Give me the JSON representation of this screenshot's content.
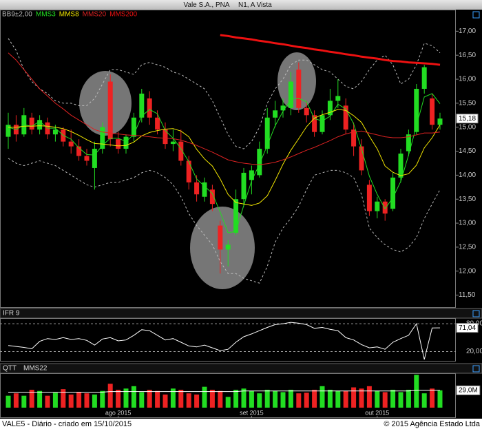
{
  "header": {
    "title": "Vale S.A., PNA",
    "market": "N1, A Vista"
  },
  "chart_data": [
    {
      "type": "candlestick",
      "categories": [
        null,
        null,
        null,
        null,
        null,
        null,
        null,
        null,
        null,
        null,
        null,
        null,
        null,
        null,
        "ago 2015",
        null,
        null,
        null,
        null,
        null,
        null,
        null,
        null,
        null,
        null,
        null,
        null,
        null,
        null,
        null,
        null,
        "set 2015",
        null,
        null,
        null,
        null,
        null,
        null,
        null,
        null,
        null,
        null,
        null,
        null,
        null,
        null,
        null,
        "out 2015",
        null,
        null,
        null,
        null,
        null,
        null,
        null,
        null
      ],
      "open": [
        14.8,
        15.05,
        14.85,
        15.2,
        14.95,
        15.1,
        14.85,
        14.95,
        14.7,
        14.6,
        14.4,
        14.15,
        14.55,
        15.95,
        14.75,
        14.55,
        14.8,
        15.2,
        15.6,
        15.2,
        14.95,
        14.65,
        14.7,
        14.3,
        13.85,
        13.55,
        13.7,
        12.95,
        12.45,
        12.8,
        13.5,
        13.9,
        14.0,
        14.55,
        15.2,
        15.35,
        15.4,
        16.2,
        15.4,
        15.25,
        14.9,
        15.25,
        15.55,
        15.45,
        14.95,
        14.6,
        13.8,
        13.25,
        13.45,
        13.3,
        13.95,
        14.5,
        14.9,
        15.8,
        15.6,
        15.05
      ],
      "high": [
        15.3,
        15.25,
        15.4,
        15.3,
        15.25,
        15.2,
        15.05,
        15.0,
        14.95,
        14.75,
        14.55,
        14.7,
        15.1,
        16.1,
        14.9,
        14.85,
        15.3,
        15.8,
        15.75,
        15.35,
        15.1,
        14.95,
        14.95,
        14.4,
        14.0,
        13.95,
        13.8,
        13.05,
        12.65,
        13.7,
        14.15,
        14.2,
        14.7,
        15.4,
        15.55,
        15.6,
        16.15,
        16.35,
        15.55,
        15.35,
        15.35,
        15.8,
        16.0,
        15.6,
        15.1,
        14.75,
        13.9,
        13.55,
        13.5,
        14.05,
        14.55,
        14.95,
        15.9,
        16.3,
        15.7,
        15.3
      ],
      "low": [
        14.55,
        14.7,
        14.8,
        14.85,
        14.85,
        14.75,
        14.7,
        14.6,
        14.45,
        14.3,
        14.2,
        13.7,
        14.45,
        14.6,
        14.45,
        14.45,
        14.7,
        15.1,
        15.05,
        14.85,
        14.55,
        14.5,
        14.2,
        13.7,
        13.45,
        13.45,
        13.25,
        11.95,
        12.1,
        12.75,
        13.35,
        13.6,
        13.95,
        14.45,
        15.0,
        15.2,
        15.25,
        15.3,
        15.1,
        14.8,
        14.85,
        15.15,
        15.4,
        14.85,
        14.4,
        14.0,
        13.15,
        13.1,
        13.05,
        13.25,
        13.85,
        14.4,
        14.85,
        15.7,
        14.95,
        14.95
      ],
      "close": [
        15.05,
        14.85,
        15.25,
        14.95,
        15.15,
        14.85,
        14.95,
        14.7,
        14.6,
        14.4,
        14.3,
        14.55,
        15.0,
        14.75,
        14.55,
        14.8,
        15.2,
        15.7,
        15.2,
        14.95,
        14.65,
        14.7,
        14.3,
        13.85,
        13.6,
        13.85,
        13.4,
        12.45,
        12.55,
        13.5,
        14.05,
        14.1,
        14.55,
        15.2,
        15.35,
        15.45,
        15.95,
        15.4,
        15.25,
        14.9,
        15.25,
        15.55,
        15.65,
        14.95,
        14.6,
        14.1,
        13.25,
        13.45,
        13.2,
        13.95,
        14.45,
        14.85,
        15.8,
        16.25,
        15.05,
        15.18
      ],
      "up_color": "#22dd22",
      "down_color": "#ee2222",
      "bands": {
        "name": "BB9±2,00",
        "color": "#bbbbbb",
        "upper": [
          16.85,
          16.6,
          16.2,
          15.95,
          15.8,
          15.7,
          15.55,
          15.5,
          15.5,
          15.45,
          15.45,
          15.6,
          15.9,
          16.2,
          16.2,
          16.15,
          16.1,
          16.3,
          16.35,
          16.3,
          16.25,
          16.15,
          16.1,
          16.0,
          15.9,
          15.8,
          15.55,
          15.2,
          14.85,
          14.6,
          14.55,
          14.7,
          15.0,
          15.5,
          15.8,
          16.0,
          16.3,
          16.4,
          16.4,
          16.3,
          16.2,
          16.15,
          16.0,
          15.85,
          15.8,
          15.95,
          16.2,
          16.4,
          16.5,
          16.3,
          15.9,
          16.0,
          16.3,
          16.75,
          16.7,
          16.55
        ],
        "lower": [
          14.35,
          14.25,
          14.2,
          14.25,
          14.3,
          14.25,
          14.2,
          14.1,
          14.0,
          13.9,
          13.8,
          13.75,
          13.8,
          13.85,
          13.85,
          13.9,
          13.95,
          14.05,
          14.1,
          14.05,
          13.95,
          13.8,
          13.55,
          13.2,
          12.95,
          12.75,
          12.55,
          12.2,
          11.95,
          11.95,
          11.85,
          11.8,
          11.75,
          12.1,
          12.6,
          12.9,
          13.1,
          13.35,
          13.7,
          14.0,
          14.05,
          14.1,
          14.1,
          14.05,
          13.95,
          13.6,
          12.9,
          12.7,
          12.55,
          12.45,
          12.4,
          12.5,
          12.7,
          13.1,
          13.4,
          13.7
        ]
      },
      "series": [
        {
          "name": "MMS3",
          "color": "#22dd22",
          "width": 1,
          "values": [
            15.0,
            14.95,
            15.05,
            15.02,
            15.12,
            14.98,
            14.98,
            14.83,
            14.75,
            14.57,
            14.43,
            14.42,
            14.62,
            14.77,
            14.77,
            14.7,
            14.85,
            15.23,
            15.37,
            15.28,
            14.93,
            14.77,
            14.55,
            14.28,
            13.92,
            13.77,
            13.62,
            13.23,
            12.8,
            12.83,
            13.37,
            13.88,
            14.23,
            14.62,
            15.03,
            15.33,
            15.58,
            15.6,
            15.53,
            15.18,
            15.13,
            15.23,
            15.48,
            15.38,
            15.07,
            14.55,
            13.98,
            13.6,
            13.3,
            13.53,
            13.87,
            14.42,
            15.03,
            15.63,
            15.7,
            15.49
          ]
        },
        {
          "name": "MMS8",
          "color": "#f2e600",
          "width": 1,
          "values": [
            15.0,
            15.0,
            15.02,
            15.02,
            15.03,
            15.02,
            15.0,
            14.97,
            14.91,
            14.83,
            14.74,
            14.66,
            14.65,
            14.63,
            14.61,
            14.62,
            14.69,
            14.82,
            14.89,
            14.93,
            14.96,
            14.97,
            14.92,
            14.8,
            14.54,
            14.34,
            14.19,
            13.92,
            13.6,
            13.43,
            13.4,
            13.37,
            13.42,
            13.57,
            13.89,
            14.23,
            14.52,
            14.76,
            15.01,
            15.19,
            15.26,
            15.31,
            15.37,
            15.35,
            15.24,
            15.1,
            14.81,
            14.55,
            14.19,
            14.06,
            13.99,
            14.03,
            14.21,
            14.57,
            14.78,
            15.05
          ]
        },
        {
          "name": "MMS20",
          "color": "#dd2222",
          "width": 1,
          "values": [
            16.55,
            16.4,
            16.2,
            16.0,
            15.8,
            15.65,
            15.5,
            15.38,
            15.25,
            15.15,
            15.05,
            14.95,
            14.9,
            14.88,
            14.86,
            14.84,
            14.83,
            14.82,
            14.8,
            14.78,
            14.77,
            14.76,
            14.73,
            14.68,
            14.62,
            14.55,
            14.48,
            14.4,
            14.32,
            14.28,
            14.25,
            14.23,
            14.22,
            14.24,
            14.27,
            14.32,
            14.38,
            14.45,
            14.52,
            14.58,
            14.65,
            14.72,
            14.8,
            14.86,
            14.9,
            14.92,
            14.88,
            14.84,
            14.8,
            14.78,
            14.78,
            14.8,
            14.84,
            14.88,
            14.88,
            14.9
          ]
        },
        {
          "name": "MMS200",
          "color": "#ee1111",
          "width": 3,
          "values": [
            null,
            null,
            null,
            null,
            null,
            null,
            null,
            null,
            null,
            null,
            null,
            null,
            null,
            null,
            null,
            null,
            null,
            null,
            null,
            null,
            null,
            null,
            null,
            null,
            null,
            null,
            null,
            16.92,
            16.9,
            16.87,
            16.85,
            16.83,
            16.8,
            16.78,
            16.75,
            16.73,
            16.7,
            16.67,
            16.65,
            16.62,
            16.6,
            16.57,
            16.55,
            16.52,
            16.5,
            16.47,
            16.45,
            16.43,
            16.4,
            16.38,
            16.37,
            16.35,
            16.34,
            16.33,
            16.32,
            16.3
          ]
        }
      ],
      "ylim": [
        11.25,
        17.45
      ],
      "yticks": [
        {
          "value": 11.5,
          "label": "11,50"
        },
        {
          "value": 12,
          "label": "12,00"
        },
        {
          "value": 12.5,
          "label": "12,50"
        },
        {
          "value": 13,
          "label": "13,00"
        },
        {
          "value": 13.5,
          "label": "13,50"
        },
        {
          "value": 14,
          "label": "14,00"
        },
        {
          "value": 14.5,
          "label": "14,50"
        },
        {
          "value": 15,
          "label": "15,00"
        },
        {
          "value": 15.5,
          "label": "15,50"
        },
        {
          "value": 16,
          "label": "16,00"
        },
        {
          "value": 16.5,
          "label": "16,50"
        },
        {
          "value": 17,
          "label": "17,00"
        }
      ],
      "last_value": {
        "value": 15.18,
        "label": "15,18"
      }
    },
    {
      "type": "line",
      "title": "IFR 9",
      "color": "#ffffff",
      "values": [
        33,
        31,
        29,
        26,
        42,
        48,
        46,
        50,
        46,
        48,
        44,
        34,
        47,
        50,
        43,
        45,
        55,
        67,
        65,
        55,
        45,
        48,
        40,
        32,
        30,
        34,
        28,
        22,
        25,
        40,
        52,
        58,
        65,
        72,
        78,
        80,
        83,
        81,
        78,
        70,
        72,
        68,
        65,
        50,
        45,
        35,
        28,
        30,
        25,
        40,
        48,
        55,
        80,
        3,
        71,
        71.04
      ],
      "ylim": [
        0,
        92
      ],
      "yticks": [
        {
          "value": 20,
          "label": "20,00"
        },
        {
          "value": 80,
          "label": "80,00"
        }
      ],
      "last_value": {
        "value": 71.04,
        "label": "71,04"
      }
    },
    {
      "type": "bar",
      "title": "QTT",
      "values": [
        20,
        24,
        20,
        30,
        28,
        20,
        25,
        31,
        22,
        26,
        24,
        22,
        28,
        40,
        30,
        32,
        36,
        26,
        30,
        28,
        22,
        32,
        30,
        24,
        22,
        35,
        30,
        28,
        18,
        30,
        32,
        28,
        24,
        30,
        28,
        26,
        30,
        24,
        25,
        30,
        36,
        30,
        28,
        28,
        34,
        32,
        36,
        28,
        26,
        30,
        26,
        30,
        55,
        24,
        32,
        29.0
      ],
      "series": [
        {
          "name": "MMS22",
          "color": "#ffffff",
          "values": [
            26,
            26,
            26,
            26,
            26,
            26,
            26,
            26,
            26,
            26,
            26,
            26,
            26,
            27,
            27,
            27,
            27,
            27,
            27,
            27,
            27,
            27,
            27,
            27,
            27,
            27,
            27,
            27,
            27,
            27,
            28,
            28,
            28,
            28,
            28,
            28,
            28,
            28,
            28,
            28,
            28,
            28,
            28,
            28,
            28,
            28,
            28,
            28,
            28,
            28,
            28,
            28,
            29,
            29,
            29,
            29
          ]
        }
      ],
      "ylim": [
        0,
        60
      ],
      "last_value": {
        "value": 29.0,
        "label": "29,0M"
      }
    }
  ],
  "footer": {
    "left": "VALE5 - Diário - criado em 15/10/2015",
    "right": "© 2015 Agência Estado Ltda"
  }
}
